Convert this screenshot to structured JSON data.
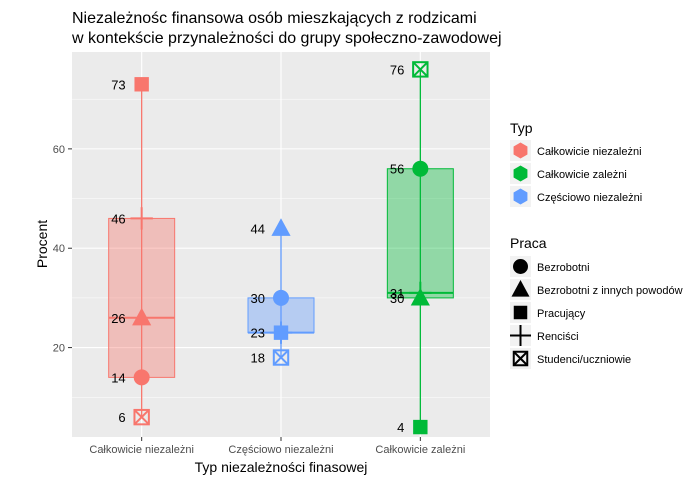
{
  "chart_data": {
    "type": "boxplot",
    "title": "Niezależnośc finansowa osób mieszkających z rodzicami\nw kontekście przynależności do grupy społeczno-zawodowej",
    "xlabel": "Typ niezależności finasowej",
    "ylabel": "Procent",
    "ylim": [
      2,
      79.5
    ],
    "yticks": [
      20,
      40,
      60
    ],
    "grid": true,
    "categories": [
      "Całkowicie niezależni",
      "Częściowo niezależni",
      "Całkowicie zależni"
    ],
    "boxes": [
      {
        "category": "Całkowicie niezależni",
        "typ": "Całkowicie niezależni",
        "color": "#F8766D",
        "min": 6,
        "q1": 14,
        "median": 26,
        "q3": 46,
        "max": 73
      },
      {
        "category": "Częściowo niezależni",
        "typ": "Częściowo niezależni",
        "color": "#619CFF",
        "min": 18,
        "q1": 23,
        "median": 23,
        "q3": 30,
        "max": 44
      },
      {
        "category": "Całkowicie zależni",
        "typ": "Całkowicie zależni",
        "color": "#00BA38",
        "min": 4,
        "q1": 30,
        "median": 31,
        "q3": 56,
        "max": 76
      }
    ],
    "points": [
      {
        "category": "Całkowicie niezależni",
        "praca": "Pracujący",
        "value": 73,
        "label": "73"
      },
      {
        "category": "Całkowicie niezależni",
        "praca": "Renciści",
        "value": 46,
        "label": "46"
      },
      {
        "category": "Całkowicie niezależni",
        "praca": "Bezrobotni z innych powodów",
        "value": 26,
        "label": "26"
      },
      {
        "category": "Całkowicie niezależni",
        "praca": "Bezrobotni",
        "value": 14,
        "label": "14"
      },
      {
        "category": "Całkowicie niezależni",
        "praca": "Studenci/uczniowie",
        "value": 6,
        "label": "6"
      },
      {
        "category": "Częściowo niezależni",
        "praca": "Bezrobotni z innych powodów",
        "value": 44,
        "label": "44"
      },
      {
        "category": "Częściowo niezależni",
        "praca": "Bezrobotni",
        "value": 30,
        "label": "30"
      },
      {
        "category": "Częściowo niezależni",
        "praca": "Pracujący",
        "value": 23,
        "label": "23"
      },
      {
        "category": "Częściowo niezależni",
        "praca": "Renciści",
        "value": 23,
        "label": ""
      },
      {
        "category": "Częściowo niezależni",
        "praca": "Studenci/uczniowie",
        "value": 18,
        "label": "18"
      },
      {
        "category": "Całkowicie zależni",
        "praca": "Studenci/uczniowie",
        "value": 76,
        "label": "76"
      },
      {
        "category": "Całkowicie zależni",
        "praca": "Bezrobotni",
        "value": 56,
        "label": "56"
      },
      {
        "category": "Całkowicie zależni",
        "praca": "Renciści",
        "value": 31,
        "label": "31"
      },
      {
        "category": "Całkowicie zależni",
        "praca": "Bezrobotni z innych powodów",
        "value": 30,
        "label": "30"
      },
      {
        "category": "Całkowicie zależni",
        "praca": "Pracujący",
        "value": 4,
        "label": "4"
      }
    ],
    "legend_typ": {
      "title": "Typ",
      "entries": [
        {
          "label": "Całkowicie niezależni",
          "color": "#F8766D"
        },
        {
          "label": "Całkowicie zależni",
          "color": "#00BA38"
        },
        {
          "label": "Częściowo niezależni",
          "color": "#619CFF"
        }
      ]
    },
    "legend_praca": {
      "title": "Praca",
      "entries": [
        {
          "label": "Bezrobotni",
          "shape": "circle"
        },
        {
          "label": "Bezrobotni z innych powodów",
          "shape": "triangle"
        },
        {
          "label": "Pracujący",
          "shape": "square"
        },
        {
          "label": "Renciści",
          "shape": "plus"
        },
        {
          "label": "Studenci/uczniowie",
          "shape": "boxcross"
        }
      ]
    },
    "legend_placement": "right"
  }
}
